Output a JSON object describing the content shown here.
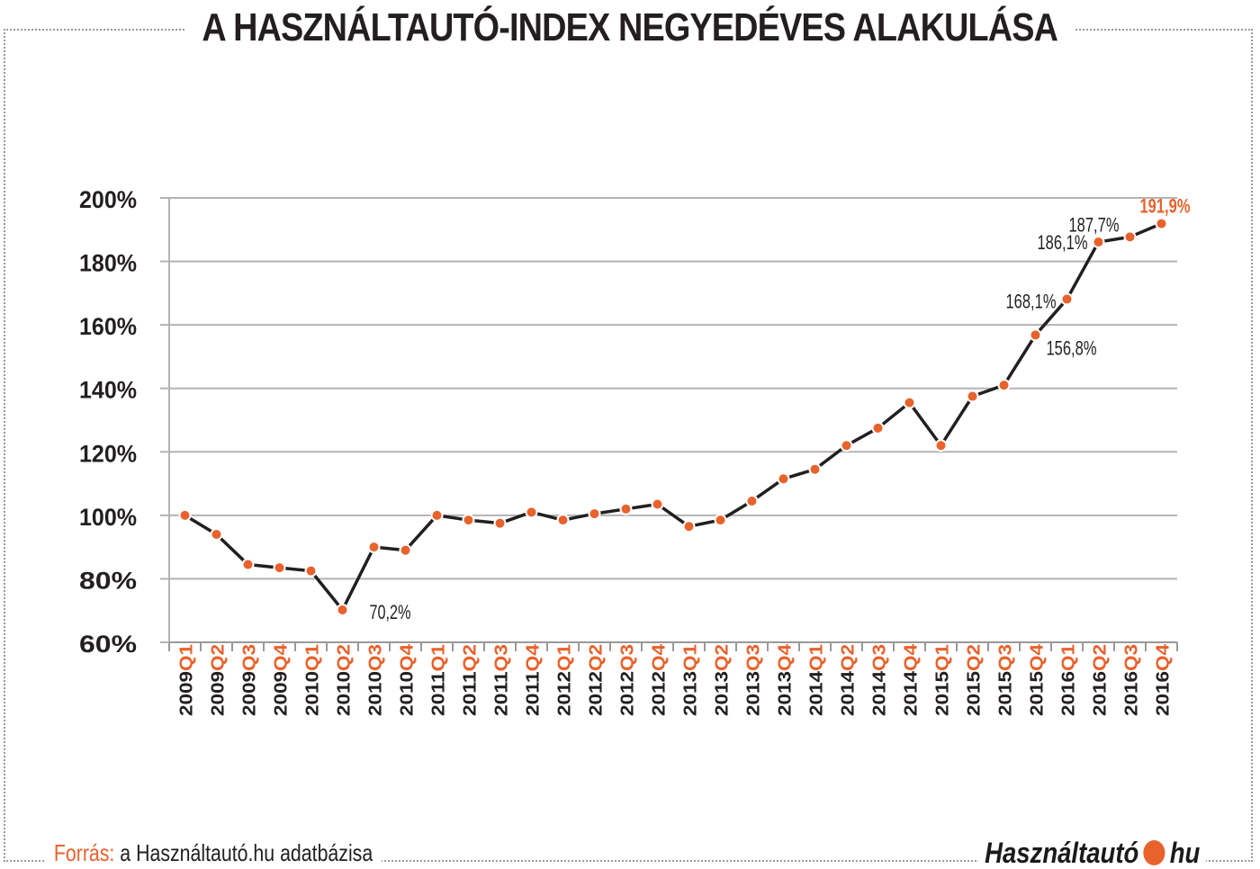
{
  "header": {
    "title": "A HASZNÁLTAUTÓ-INDEX NEGYEDÉVES ALAKULÁSA"
  },
  "footer": {
    "source_label": "Forrás:",
    "source_text": " a Használtautó.hu adatbázisa",
    "logo_left": "Használtautó",
    "logo_right": "hu"
  },
  "colors": {
    "accent": "#e8622c",
    "line": "#231f20",
    "grid": "#b3b3b3"
  },
  "chart_data": {
    "type": "line",
    "title": "A HASZNÁLTAUTÓ-INDEX NEGYEDÉVES ALAKULÁSA",
    "xlabel": "",
    "ylabel": "",
    "ylim": [
      60,
      200
    ],
    "yticks": [
      "200%",
      "180%",
      "160%",
      "140%",
      "120%",
      "100%",
      "80%",
      "60%"
    ],
    "ytick_values": [
      200,
      180,
      160,
      140,
      120,
      100,
      80,
      60
    ],
    "grid": true,
    "categories": [
      {
        "year": "2009",
        "q": "Q1"
      },
      {
        "year": "2009",
        "q": "Q2"
      },
      {
        "year": "2009",
        "q": "Q3"
      },
      {
        "year": "2009",
        "q": "Q4"
      },
      {
        "year": "2010",
        "q": "Q1"
      },
      {
        "year": "2010",
        "q": "Q2"
      },
      {
        "year": "2010",
        "q": "Q3"
      },
      {
        "year": "2010",
        "q": "Q4"
      },
      {
        "year": "2011",
        "q": "Q1"
      },
      {
        "year": "2011",
        "q": "Q2"
      },
      {
        "year": "2011",
        "q": "Q3"
      },
      {
        "year": "2011",
        "q": "Q4"
      },
      {
        "year": "2012",
        "q": "Q1"
      },
      {
        "year": "2012",
        "q": "Q2"
      },
      {
        "year": "2012",
        "q": "Q3"
      },
      {
        "year": "2012",
        "q": "Q4"
      },
      {
        "year": "2013",
        "q": "Q1"
      },
      {
        "year": "2013",
        "q": "Q2"
      },
      {
        "year": "2013",
        "q": "Q3"
      },
      {
        "year": "2013",
        "q": "Q4"
      },
      {
        "year": "2014",
        "q": "Q1"
      },
      {
        "year": "2014",
        "q": "Q2"
      },
      {
        "year": "2014",
        "q": "Q3"
      },
      {
        "year": "2014",
        "q": "Q4"
      },
      {
        "year": "2015",
        "q": "Q1"
      },
      {
        "year": "2015",
        "q": "Q2"
      },
      {
        "year": "2015",
        "q": "Q3"
      },
      {
        "year": "2015",
        "q": "Q4"
      },
      {
        "year": "2016",
        "q": "Q1"
      },
      {
        "year": "2016",
        "q": "Q2"
      },
      {
        "year": "2016",
        "q": "Q3"
      },
      {
        "year": "2016",
        "q": "Q4"
      }
    ],
    "series": [
      {
        "values": [
          100,
          94,
          84.5,
          83.5,
          82.5,
          70.2,
          90,
          89,
          100,
          98.5,
          97.5,
          101,
          98.5,
          100.5,
          102,
          103.5,
          96.5,
          98.5,
          104.5,
          111.5,
          114.5,
          122,
          127.5,
          135.5,
          122,
          137.5,
          141,
          156.8,
          168.1,
          186.1,
          187.7,
          191.9
        ]
      }
    ],
    "annotations": [
      {
        "index": 5,
        "label": "70,2%",
        "highlight": false
      },
      {
        "index": 27,
        "label": "156,8%",
        "highlight": false
      },
      {
        "index": 28,
        "label": "168,1%",
        "highlight": false
      },
      {
        "index": 29,
        "label": "186,1%",
        "highlight": false
      },
      {
        "index": 30,
        "label": "187,7%",
        "highlight": false
      },
      {
        "index": 31,
        "label": "191,9%",
        "highlight": true
      }
    ]
  }
}
